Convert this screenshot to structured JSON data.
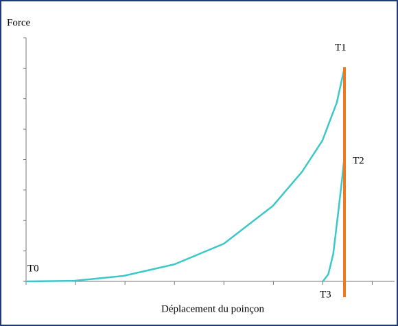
{
  "chart_data": {
    "type": "line",
    "ylabel": "Force",
    "xlabel": "Déplacement du poinçon",
    "annotations": [
      "T0",
      "T1",
      "T2",
      "T3"
    ],
    "xlim": [
      0,
      7.45
    ],
    "ylim": [
      0,
      8
    ],
    "xticks": [
      0,
      1,
      2,
      3,
      4,
      5,
      6,
      7
    ],
    "yticks": [
      0,
      1,
      2,
      3,
      4,
      5,
      6,
      7,
      8
    ],
    "series": [
      {
        "color": "#3cc8c8",
        "x": [
          0,
          0.97,
          1.97,
          3,
          4,
          4.99,
          5.58,
          5.99,
          6.28,
          6.44
        ],
        "values": [
          0,
          0.02,
          0.18,
          0.56,
          1.24,
          2.48,
          3.6,
          4.62,
          5.86,
          7.03
        ]
      },
      {
        "color": "#3cc8c8",
        "x": [
          6.0,
          6.11,
          6.21,
          6.31,
          6.39,
          6.44
        ],
        "values": [
          0,
          0.23,
          0.9,
          2.25,
          3.38,
          4.17
        ]
      }
    ]
  }
}
